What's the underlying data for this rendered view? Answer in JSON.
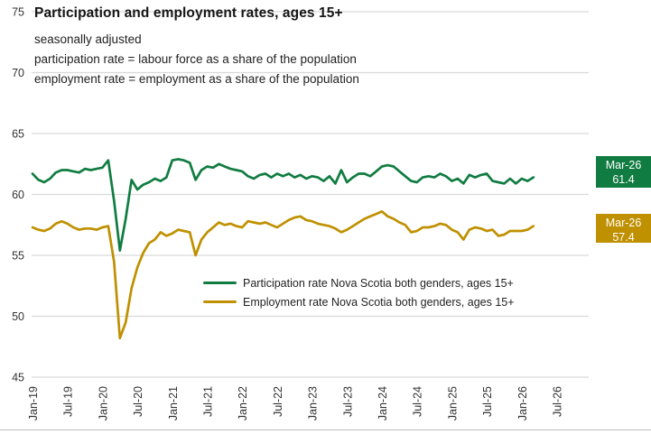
{
  "header": {
    "title": "Participation and employment rates, ages 15+",
    "subtitle_lines": [
      "seasonally adjusted",
      "participation rate = labour force as a share of the population",
      "employment rate = employment as a share of the population"
    ]
  },
  "legend": {
    "items": [
      {
        "label": "Participation rate Nova Scotia both genders, ages 15+",
        "color": "#107C41"
      },
      {
        "label": "Employment rate Nova Scotia both genders, ages 15+",
        "color": "#BF9000"
      }
    ]
  },
  "callouts": [
    {
      "series": "participation",
      "period": "Mar-26",
      "value": "61.4",
      "color": "#107C41"
    },
    {
      "series": "employment",
      "period": "Mar-26",
      "value": "57.4",
      "color": "#BF9000"
    }
  ],
  "colors": {
    "participation_green": "#107C41",
    "employment_gold": "#BF9000",
    "gridline": "#D9D9D9",
    "axis_text": "#333333",
    "frame": "#BFBFBF"
  },
  "chart_data": {
    "type": "line",
    "title": "Participation and employment rates, ages 15+",
    "frequency": "monthly",
    "x_start": "Jan-2019",
    "x_end": "Mar-2026",
    "x_tick_labels": [
      "Jan-19",
      "Jul-19",
      "Jan-20",
      "Jul-20",
      "Jan-21",
      "Jul-21",
      "Jan-22",
      "Jul-22",
      "Jan-23",
      "Jul-23",
      "Jan-24",
      "Jul-24",
      "Jan-25",
      "Jul-25",
      "Jan-26",
      "Jul-26"
    ],
    "x_tick_month_indices": [
      0,
      6,
      12,
      18,
      24,
      30,
      36,
      42,
      48,
      54,
      60,
      66,
      72,
      78,
      84,
      90
    ],
    "y_ticks": [
      45,
      50,
      55,
      60,
      65,
      70,
      75
    ],
    "ylim": [
      45,
      75
    ],
    "grid": true,
    "legend_position": "inside-lower-center",
    "series": [
      {
        "name": "Participation rate Nova Scotia both genders, ages 15+",
        "color": "#107C41",
        "last_point_label": {
          "period": "Mar-26",
          "value": 61.4
        },
        "values": [
          61.7,
          61.2,
          61.0,
          61.3,
          61.8,
          62.0,
          62.0,
          61.9,
          61.8,
          62.1,
          62.0,
          62.1,
          62.2,
          62.8,
          59.5,
          55.4,
          58.0,
          61.2,
          60.4,
          60.8,
          61.0,
          61.3,
          61.1,
          61.4,
          62.8,
          62.9,
          62.8,
          62.6,
          61.2,
          62.0,
          62.3,
          62.2,
          62.5,
          62.3,
          62.1,
          62.0,
          61.9,
          61.5,
          61.3,
          61.6,
          61.7,
          61.4,
          61.7,
          61.5,
          61.7,
          61.4,
          61.6,
          61.3,
          61.5,
          61.4,
          61.1,
          61.5,
          60.9,
          62.0,
          61.0,
          61.4,
          61.7,
          61.7,
          61.5,
          61.9,
          62.3,
          62.4,
          62.3,
          61.9,
          61.5,
          61.1,
          61.0,
          61.4,
          61.5,
          61.4,
          61.7,
          61.5,
          61.1,
          61.3,
          60.9,
          61.6,
          61.4,
          61.6,
          61.7,
          61.1,
          61.0,
          60.9,
          61.3,
          60.9,
          61.3,
          61.1,
          61.4
        ]
      },
      {
        "name": "Employment rate Nova Scotia both genders, ages 15+",
        "color": "#BF9000",
        "last_point_label": {
          "period": "Mar-26",
          "value": 57.4
        },
        "values": [
          57.3,
          57.1,
          57.0,
          57.2,
          57.6,
          57.8,
          57.6,
          57.3,
          57.1,
          57.2,
          57.2,
          57.1,
          57.3,
          57.4,
          54.5,
          48.2,
          49.5,
          52.3,
          54.0,
          55.2,
          56.0,
          56.3,
          56.9,
          56.6,
          56.8,
          57.1,
          57.0,
          56.9,
          55.0,
          56.3,
          56.9,
          57.3,
          57.7,
          57.5,
          57.6,
          57.4,
          57.3,
          57.8,
          57.7,
          57.6,
          57.7,
          57.5,
          57.3,
          57.6,
          57.9,
          58.1,
          58.2,
          57.9,
          57.8,
          57.6,
          57.5,
          57.4,
          57.2,
          56.9,
          57.1,
          57.4,
          57.7,
          58.0,
          58.2,
          58.4,
          58.6,
          58.2,
          58.0,
          57.7,
          57.5,
          56.9,
          57.0,
          57.3,
          57.3,
          57.4,
          57.6,
          57.5,
          57.1,
          56.9,
          56.3,
          57.1,
          57.3,
          57.2,
          57.0,
          57.1,
          56.6,
          56.7,
          57.0,
          57.0,
          57.0,
          57.1,
          57.4
        ]
      }
    ]
  }
}
